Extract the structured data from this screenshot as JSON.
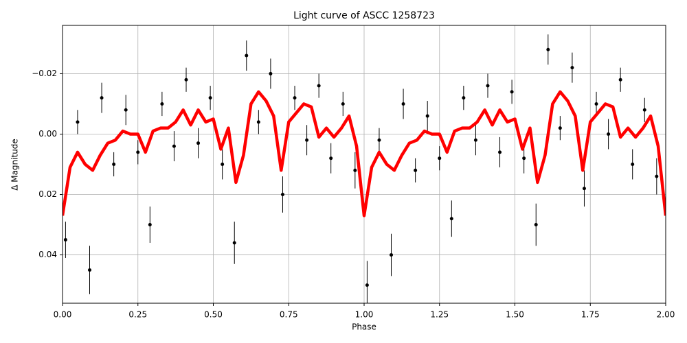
{
  "chart_data": {
    "type": "lightcurve",
    "title": "Light curve of ASCC 1258723",
    "x_label": "Phase",
    "y_label": "Δ Magnitude",
    "xlim": [
      0,
      2
    ],
    "ylim": [
      -0.036,
      0.056
    ],
    "y_inverted": true,
    "grid": true,
    "xticks": [
      {
        "value": 0,
        "label": "0.00"
      },
      {
        "value": 0.25,
        "label": "0.25"
      },
      {
        "value": 0.5,
        "label": "0.50"
      },
      {
        "value": 0.75,
        "label": "0.75"
      },
      {
        "value": 1,
        "label": "1.00"
      },
      {
        "value": 1.25,
        "label": "1.25"
      },
      {
        "value": 1.5,
        "label": "1.50"
      },
      {
        "value": 1.75,
        "label": "1.75"
      },
      {
        "value": 2,
        "label": "2.00"
      }
    ],
    "yticks": [
      {
        "value": -0.02,
        "label": "−0.02"
      },
      {
        "value": 0,
        "label": "0.00"
      },
      {
        "value": 0.02,
        "label": "0.02"
      },
      {
        "value": 0.04,
        "label": "0.04"
      }
    ],
    "points": {
      "color": "#000000",
      "x": [
        0.01,
        0.05,
        0.09,
        0.13,
        0.17,
        0.21,
        0.25,
        0.29,
        0.33,
        0.37,
        0.41,
        0.45,
        0.49,
        0.53,
        0.57,
        0.61,
        0.65,
        0.69,
        0.73,
        0.77,
        0.81,
        0.85,
        0.89,
        0.93,
        0.97,
        1.01,
        1.05,
        1.09,
        1.13,
        1.17,
        1.21,
        1.25,
        1.29,
        1.33,
        1.37,
        1.41,
        1.45,
        1.49,
        1.53,
        1.57,
        1.61,
        1.65,
        1.69,
        1.73,
        1.77,
        1.81,
        1.85,
        1.89,
        1.93,
        1.97
      ],
      "y": [
        0.035,
        -0.004,
        0.045,
        -0.012,
        0.01,
        -0.008,
        0.006,
        0.03,
        -0.01,
        0.004,
        -0.018,
        0.003,
        -0.012,
        0.01,
        0.036,
        -0.026,
        -0.004,
        -0.02,
        0.02,
        -0.012,
        0.002,
        -0.016,
        0.008,
        -0.01,
        0.012,
        0.05,
        0.002,
        0.04,
        -0.01,
        0.012,
        -0.006,
        0.008,
        0.028,
        -0.012,
        0.002,
        -0.016,
        0.006,
        -0.014,
        0.008,
        0.03,
        -0.028,
        -0.002,
        -0.022,
        0.018,
        -0.01,
        0.0,
        -0.018,
        0.01,
        -0.008,
        0.014
      ],
      "errors": [
        0.006,
        0.004,
        0.008,
        0.005,
        0.004,
        0.005,
        0.004,
        0.006,
        0.004,
        0.005,
        0.004,
        0.005,
        0.004,
        0.005,
        0.007,
        0.005,
        0.004,
        0.005,
        0.006,
        0.004,
        0.005,
        0.004,
        0.005,
        0.004,
        0.006,
        0.008,
        0.004,
        0.007,
        0.005,
        0.004,
        0.005,
        0.004,
        0.006,
        0.004,
        0.005,
        0.004,
        0.005,
        0.004,
        0.005,
        0.007,
        0.005,
        0.004,
        0.005,
        0.006,
        0.004,
        0.005,
        0.004,
        0.005,
        0.004,
        0.006
      ]
    },
    "model": {
      "color": "#ff0000",
      "x": [
        0,
        0.025,
        0.05,
        0.075,
        0.1,
        0.125,
        0.15,
        0.175,
        0.2,
        0.225,
        0.25,
        0.275,
        0.3,
        0.325,
        0.35,
        0.375,
        0.4,
        0.425,
        0.45,
        0.475,
        0.5,
        0.525,
        0.55,
        0.575,
        0.6,
        0.625,
        0.65,
        0.675,
        0.7,
        0.725,
        0.75,
        0.775,
        0.8,
        0.825,
        0.85,
        0.875,
        0.9,
        0.925,
        0.95,
        0.975,
        1,
        1.025,
        1.05,
        1.075,
        1.1,
        1.125,
        1.15,
        1.175,
        1.2,
        1.225,
        1.25,
        1.275,
        1.3,
        1.325,
        1.35,
        1.375,
        1.4,
        1.425,
        1.45,
        1.475,
        1.5,
        1.525,
        1.55,
        1.575,
        1.6,
        1.625,
        1.65,
        1.675,
        1.7,
        1.725,
        1.75,
        1.775,
        1.8,
        1.825,
        1.85,
        1.875,
        1.9,
        1.925,
        1.95,
        1.975,
        2
      ],
      "values": [
        0.027,
        0.011,
        0.006,
        0.01,
        0.012,
        0.007,
        0.003,
        0.002,
        -0.001,
        0.0,
        0.0,
        0.006,
        -0.001,
        -0.002,
        -0.002,
        -0.004,
        -0.008,
        -0.003,
        -0.008,
        -0.004,
        -0.005,
        0.005,
        -0.002,
        0.016,
        0.007,
        -0.01,
        -0.014,
        -0.011,
        -0.006,
        0.012,
        -0.004,
        -0.007,
        -0.01,
        -0.009,
        0.001,
        -0.002,
        0.001,
        -0.002,
        -0.006,
        0.004,
        0.027,
        0.011,
        0.006,
        0.01,
        0.012,
        0.007,
        0.003,
        0.002,
        -0.001,
        0.0,
        0.0,
        0.006,
        -0.001,
        -0.002,
        -0.002,
        -0.004,
        -0.008,
        -0.003,
        -0.008,
        -0.004,
        -0.005,
        0.005,
        -0.002,
        0.016,
        0.007,
        -0.01,
        -0.014,
        -0.011,
        -0.006,
        0.012,
        -0.004,
        -0.007,
        -0.01,
        -0.009,
        0.001,
        -0.002,
        0.001,
        -0.002,
        -0.006,
        0.004,
        0.027
      ]
    }
  }
}
